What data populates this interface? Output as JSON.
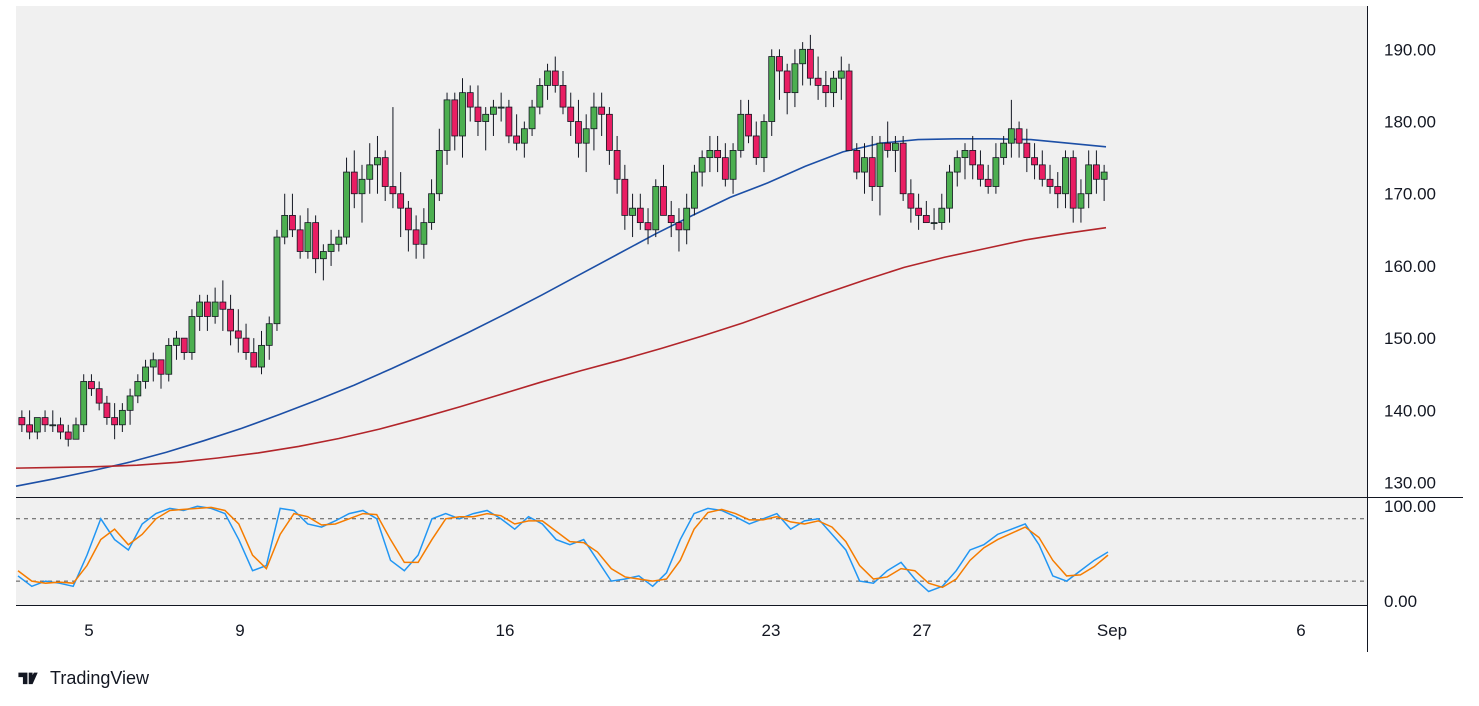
{
  "chart_data": [
    {
      "type": "candlestick",
      "title": "",
      "price_axis": {
        "range": [
          128,
          196
        ],
        "ticks": [
          130,
          140,
          150,
          160,
          170,
          180,
          190
        ],
        "tick_labels": [
          "130.00",
          "140.00",
          "150.00",
          "160.00",
          "170.00",
          "180.00",
          "190.00"
        ]
      },
      "date_axis": {
        "tick_labels": [
          "5",
          "9",
          "16",
          "23",
          "27",
          "Sep",
          "6"
        ]
      },
      "candles": [
        [
          139,
          140,
          137,
          138
        ],
        [
          138,
          140,
          136,
          137
        ],
        [
          137,
          139,
          136,
          139
        ],
        [
          139,
          140,
          137,
          138
        ],
        [
          138,
          140,
          137,
          138
        ],
        [
          138,
          139,
          136,
          137
        ],
        [
          137,
          138,
          135,
          136
        ],
        [
          136,
          139,
          136,
          138
        ],
        [
          138,
          145,
          137,
          144
        ],
        [
          144,
          145,
          142,
          143
        ],
        [
          143,
          144,
          140,
          141
        ],
        [
          141,
          142,
          138,
          139
        ],
        [
          139,
          141,
          136,
          138
        ],
        [
          138,
          141,
          137,
          140
        ],
        [
          140,
          143,
          138,
          142
        ],
        [
          142,
          145,
          141,
          144
        ],
        [
          144,
          147,
          143,
          146
        ],
        [
          146,
          148,
          144,
          147
        ],
        [
          147,
          147,
          143,
          145
        ],
        [
          145,
          150,
          144,
          149
        ],
        [
          149,
          151,
          147,
          150
        ],
        [
          150,
          150,
          147,
          148
        ],
        [
          148,
          154,
          147,
          153
        ],
        [
          153,
          156,
          151,
          155
        ],
        [
          155,
          156,
          151,
          153
        ],
        [
          153,
          157,
          152,
          155
        ],
        [
          155,
          158,
          151,
          154
        ],
        [
          154,
          156,
          149,
          151
        ],
        [
          151,
          154,
          148,
          150
        ],
        [
          150,
          152,
          147,
          148
        ],
        [
          148,
          150,
          146,
          146
        ],
        [
          146,
          151,
          145,
          149
        ],
        [
          149,
          153,
          147,
          152
        ],
        [
          152,
          165,
          151,
          164
        ],
        [
          164,
          170,
          163,
          167
        ],
        [
          167,
          170,
          164,
          165
        ],
        [
          165,
          167,
          161,
          162
        ],
        [
          162,
          168,
          161,
          166
        ],
        [
          166,
          167,
          159,
          161
        ],
        [
          161,
          163,
          158,
          162
        ],
        [
          162,
          165,
          160,
          163
        ],
        [
          163,
          165,
          162,
          164
        ],
        [
          164,
          175,
          163,
          173
        ],
        [
          173,
          176,
          168,
          170
        ],
        [
          170,
          174,
          166,
          172
        ],
        [
          172,
          177,
          170,
          174
        ],
        [
          174,
          178,
          170,
          175
        ],
        [
          175,
          176,
          169,
          171
        ],
        [
          171,
          182,
          168,
          170
        ],
        [
          170,
          173,
          164,
          168
        ],
        [
          168,
          169,
          162,
          165
        ],
        [
          165,
          167,
          161,
          163
        ],
        [
          163,
          168,
          161,
          166
        ],
        [
          166,
          172,
          165,
          170
        ],
        [
          170,
          179,
          169,
          176
        ],
        [
          176,
          184,
          174,
          183
        ],
        [
          183,
          184,
          176,
          178
        ],
        [
          178,
          186,
          175,
          184
        ],
        [
          184,
          185,
          180,
          182
        ],
        [
          182,
          185,
          178,
          180
        ],
        [
          180,
          182,
          176,
          181
        ],
        [
          181,
          183,
          178,
          182
        ],
        [
          182,
          184,
          180,
          182
        ],
        [
          182,
          183,
          177,
          178
        ],
        [
          178,
          181,
          176,
          177
        ],
        [
          177,
          180,
          175,
          179
        ],
        [
          179,
          183,
          178,
          182
        ],
        [
          182,
          186,
          181,
          185
        ],
        [
          185,
          188,
          183,
          187
        ],
        [
          187,
          189,
          184,
          185
        ],
        [
          185,
          187,
          181,
          182
        ],
        [
          182,
          184,
          178,
          180
        ],
        [
          180,
          183,
          175,
          177
        ],
        [
          177,
          181,
          173,
          179
        ],
        [
          179,
          184,
          176,
          182
        ],
        [
          182,
          184,
          178,
          181
        ],
        [
          181,
          182,
          174,
          176
        ],
        [
          176,
          178,
          170,
          172
        ],
        [
          172,
          174,
          165,
          167
        ],
        [
          167,
          170,
          164,
          168
        ],
        [
          168,
          170,
          165,
          166
        ],
        [
          166,
          168,
          163,
          165
        ],
        [
          165,
          172,
          164,
          171
        ],
        [
          171,
          174,
          167,
          167
        ],
        [
          167,
          169,
          164,
          166
        ],
        [
          166,
          168,
          162,
          165
        ],
        [
          165,
          170,
          163,
          168
        ],
        [
          168,
          174,
          167,
          173
        ],
        [
          173,
          176,
          171,
          175
        ],
        [
          175,
          178,
          173,
          176
        ],
        [
          176,
          178,
          173,
          175
        ],
        [
          175,
          177,
          171,
          172
        ],
        [
          172,
          177,
          170,
          176
        ],
        [
          176,
          183,
          175,
          181
        ],
        [
          181,
          183,
          177,
          178
        ],
        [
          178,
          180,
          174,
          175
        ],
        [
          175,
          181,
          173,
          180
        ],
        [
          180,
          190,
          178,
          189
        ],
        [
          189,
          190,
          183,
          187
        ],
        [
          187,
          188,
          181,
          184
        ],
        [
          184,
          190,
          182,
          188
        ],
        [
          188,
          191,
          185,
          190
        ],
        [
          190,
          192,
          185,
          186
        ],
        [
          186,
          189,
          183,
          185
        ],
        [
          185,
          187,
          182,
          184
        ],
        [
          184,
          187,
          182,
          186
        ],
        [
          186,
          189,
          183,
          187
        ],
        [
          187,
          188,
          176,
          176
        ],
        [
          176,
          177,
          172,
          173
        ],
        [
          173,
          177,
          170,
          175
        ],
        [
          175,
          178,
          169,
          171
        ],
        [
          171,
          178,
          167,
          177
        ],
        [
          177,
          180,
          175,
          176
        ],
        [
          176,
          178,
          173,
          177
        ],
        [
          177,
          178,
          169,
          170
        ],
        [
          170,
          172,
          166,
          168
        ],
        [
          168,
          170,
          165,
          167
        ],
        [
          167,
          169,
          166,
          166
        ],
        [
          166,
          168,
          165,
          166
        ],
        [
          166,
          170,
          165,
          168
        ],
        [
          168,
          174,
          166,
          173
        ],
        [
          173,
          176,
          171,
          175
        ],
        [
          175,
          177,
          172,
          176
        ],
        [
          176,
          178,
          172,
          174
        ],
        [
          174,
          176,
          171,
          172
        ],
        [
          172,
          174,
          170,
          171
        ],
        [
          171,
          177,
          170,
          175
        ],
        [
          175,
          178,
          174,
          177
        ],
        [
          177,
          183,
          175,
          179
        ],
        [
          179,
          180,
          175,
          177
        ],
        [
          177,
          179,
          173,
          175
        ],
        [
          175,
          177,
          172,
          174
        ],
        [
          174,
          176,
          171,
          172
        ],
        [
          172,
          174,
          170,
          171
        ],
        [
          171,
          173,
          168,
          170
        ],
        [
          170,
          176,
          168,
          175
        ],
        [
          175,
          176,
          166,
          168
        ],
        [
          168,
          172,
          166,
          170
        ],
        [
          170,
          176,
          168,
          174
        ],
        [
          174,
          176,
          170,
          172
        ],
        [
          172,
          174,
          169,
          173
        ]
      ],
      "series": [
        {
          "name": "",
          "color": "#1c4fa6",
          "values": [
            129.5,
            130.5,
            131.6,
            132.8,
            134.2,
            135.8,
            137.5,
            139.4,
            141.4,
            143.5,
            145.8,
            148.2,
            150.7,
            153.3,
            156.0,
            158.8,
            161.6,
            164.4,
            167.0,
            169.5,
            171.5,
            173.8,
            175.8,
            177.0,
            177.5,
            177.6,
            177.6,
            177.5,
            177.0,
            176.5
          ]
        },
        {
          "name": "",
          "color": "#b2252a",
          "values": [
            132.0,
            132.1,
            132.2,
            132.4,
            132.8,
            133.4,
            134.1,
            135.0,
            136.1,
            137.4,
            138.9,
            140.5,
            142.2,
            143.9,
            145.5,
            147.0,
            148.6,
            150.3,
            152.1,
            154.1,
            156.1,
            158.0,
            159.8,
            161.2,
            162.4,
            163.6,
            164.5,
            165.3
          ]
        }
      ]
    },
    {
      "type": "line",
      "title": "",
      "y_axis": {
        "range": [
          -3,
          100
        ],
        "ticks": [
          0,
          100
        ],
        "tick_labels": [
          "0.00",
          "100.00"
        ]
      },
      "levels": [
        20,
        80
      ],
      "series": [
        {
          "name": "",
          "color": "#2196f3",
          "values": [
            25,
            15,
            20,
            18,
            15,
            45,
            80,
            60,
            50,
            75,
            85,
            90,
            88,
            92,
            90,
            85,
            60,
            30,
            35,
            90,
            88,
            75,
            72,
            78,
            85,
            88,
            80,
            40,
            30,
            45,
            80,
            85,
            80,
            85,
            88,
            80,
            70,
            82,
            75,
            60,
            55,
            60,
            40,
            20,
            22,
            25,
            15,
            28,
            60,
            85,
            90,
            88,
            82,
            75,
            80,
            85,
            70,
            78,
            80,
            65,
            50,
            20,
            18,
            30,
            38,
            22,
            10,
            15,
            30,
            50,
            55,
            65,
            70,
            75,
            55,
            25,
            20,
            30,
            40,
            48
          ]
        },
        {
          "name": "",
          "color": "#f57c00",
          "values": [
            30,
            20,
            18,
            19,
            18,
            35,
            60,
            70,
            55,
            65,
            80,
            88,
            89,
            90,
            91,
            88,
            75,
            45,
            32,
            65,
            85,
            82,
            74,
            75,
            80,
            85,
            84,
            60,
            38,
            38,
            60,
            80,
            82,
            82,
            85,
            83,
            75,
            78,
            78,
            68,
            58,
            57,
            48,
            32,
            24,
            22,
            20,
            22,
            40,
            70,
            86,
            89,
            85,
            79,
            79,
            82,
            77,
            75,
            78,
            72,
            58,
            35,
            22,
            24,
            32,
            30,
            18,
            14,
            22,
            40,
            52,
            60,
            66,
            72,
            62,
            40,
            25,
            26,
            34,
            45
          ]
        }
      ]
    }
  ],
  "brand": {
    "name": "TradingView"
  }
}
